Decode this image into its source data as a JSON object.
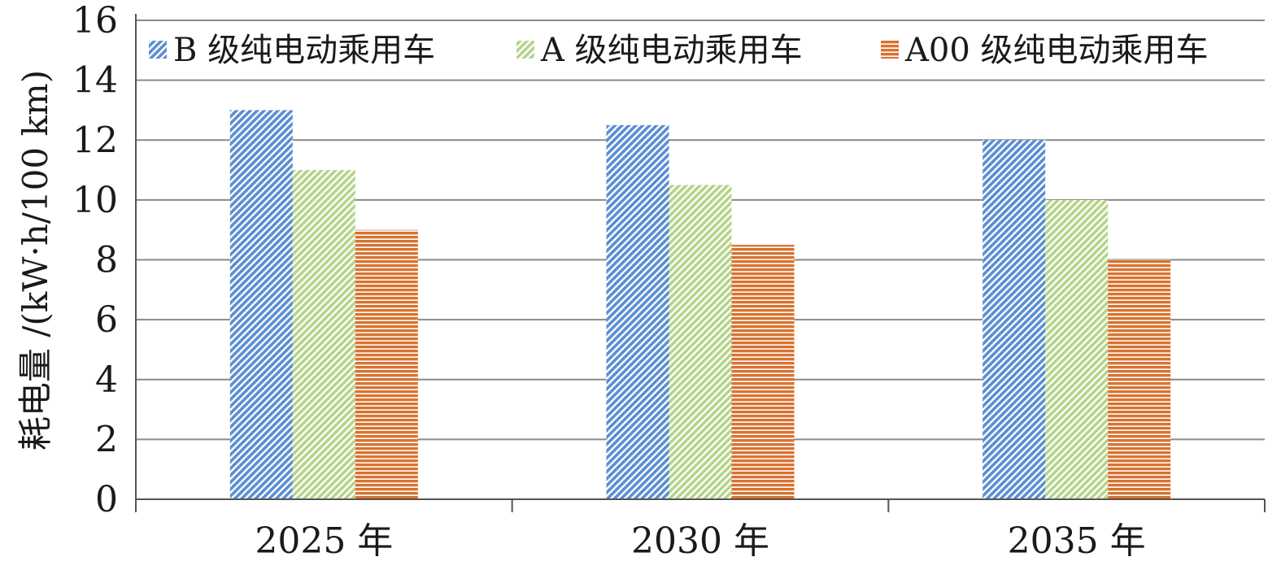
{
  "chart_data": {
    "type": "bar",
    "ylabel": "耗电量 /(kW·h/100 km)",
    "xlabel": "",
    "categories": [
      "2025 年",
      "2030 年",
      "2035 年"
    ],
    "ylim": [
      0,
      16
    ],
    "yticks": [
      0,
      2,
      4,
      6,
      8,
      10,
      12,
      14,
      16
    ],
    "grid": true,
    "legend_position": "top",
    "series": [
      {
        "name": "B 级纯电动乘用车",
        "values": [
          13,
          12.5,
          12
        ],
        "color": "#5b8ed0",
        "pattern": "diagonal-hatch"
      },
      {
        "name": "A 级纯电动乘用车",
        "values": [
          11,
          10.5,
          10
        ],
        "color": "#b5d48a",
        "pattern": "diagonal-hatch"
      },
      {
        "name": "A00 级纯电动乘用车",
        "values": [
          9,
          8.5,
          8
        ],
        "color": "#d9722e",
        "pattern": "horizontal-lines"
      }
    ]
  }
}
